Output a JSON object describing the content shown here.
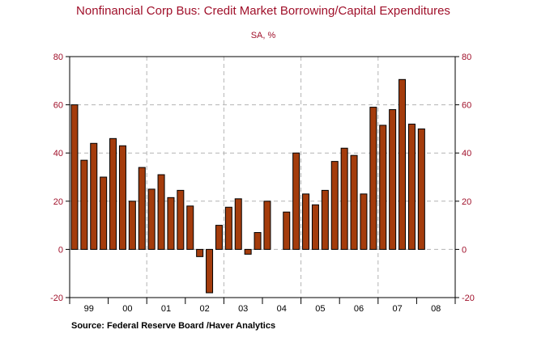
{
  "chart_data": {
    "type": "bar",
    "title": "Nonfinancial Corp Bus: Credit Market Borrowing/Capital Expenditures",
    "subtitle": "SA, %",
    "source": "Source:  Federal Reserve Board /Haver Analytics",
    "ylim": [
      -20,
      80
    ],
    "yticks": [
      -20,
      0,
      20,
      40,
      60,
      80
    ],
    "ytick_labels": [
      "-20",
      "0",
      "20",
      "40",
      "60",
      "80"
    ],
    "year_labels": [
      "99",
      "00",
      "01",
      "02",
      "03",
      "04",
      "05",
      "06",
      "07",
      "08"
    ],
    "quarters_per_year": 4,
    "values": [
      60,
      37,
      44,
      30,
      46,
      43,
      20,
      34,
      25,
      31,
      21.5,
      24.5,
      18,
      -3,
      -18,
      10,
      17.5,
      21,
      -2,
      7,
      20,
      null,
      15.5,
      40,
      23,
      18.5,
      24.5,
      36.5,
      42,
      39,
      23,
      59,
      51.5,
      58,
      70.5,
      52,
      50,
      null,
      null,
      null
    ],
    "bar_color": "#a43c0c",
    "label_color": "#a0102a",
    "grid": true
  }
}
